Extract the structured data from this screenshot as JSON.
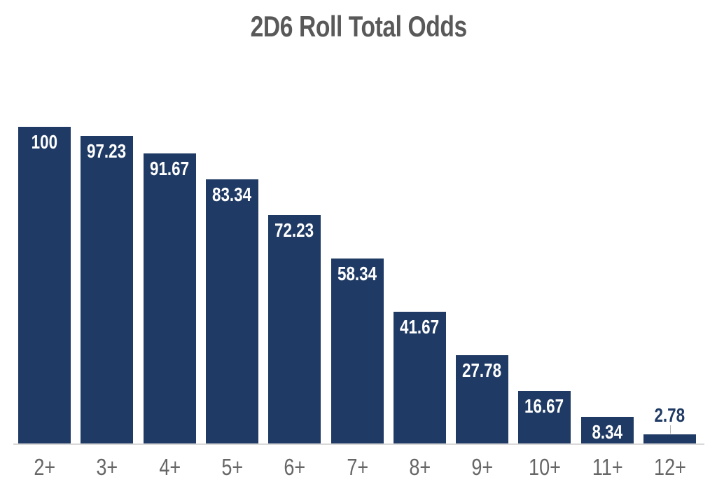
{
  "chart_data": {
    "type": "bar",
    "title": "2D6 Roll Total Odds",
    "categories": [
      "2+",
      "3+",
      "4+",
      "5+",
      "6+",
      "7+",
      "8+",
      "9+",
      "10+",
      "11+",
      "12+"
    ],
    "values": [
      100,
      97.23,
      91.67,
      83.34,
      72.23,
      58.34,
      41.67,
      27.78,
      16.67,
      8.34,
      2.78
    ],
    "value_labels": [
      "100",
      "97.23",
      "91.67",
      "83.34",
      "72.23",
      "58.34",
      "41.67",
      "27.78",
      "16.67",
      "8.34",
      "2.78"
    ],
    "xlabel": "",
    "ylabel": "",
    "ylim": [
      0,
      100
    ],
    "grid": false,
    "legend": false,
    "data_label_style": "inside-top for tall bars, above bar with leader line for short bars",
    "colors": {
      "bar": "#1f3a64",
      "label_inside": "#ffffff",
      "label_outside": "#1f3a64",
      "title": "#595959",
      "axis_tick_labels": "#666666",
      "baseline": "#d9d9d9",
      "leader_line": "#b3b3b3",
      "background": "#ffffff"
    }
  }
}
